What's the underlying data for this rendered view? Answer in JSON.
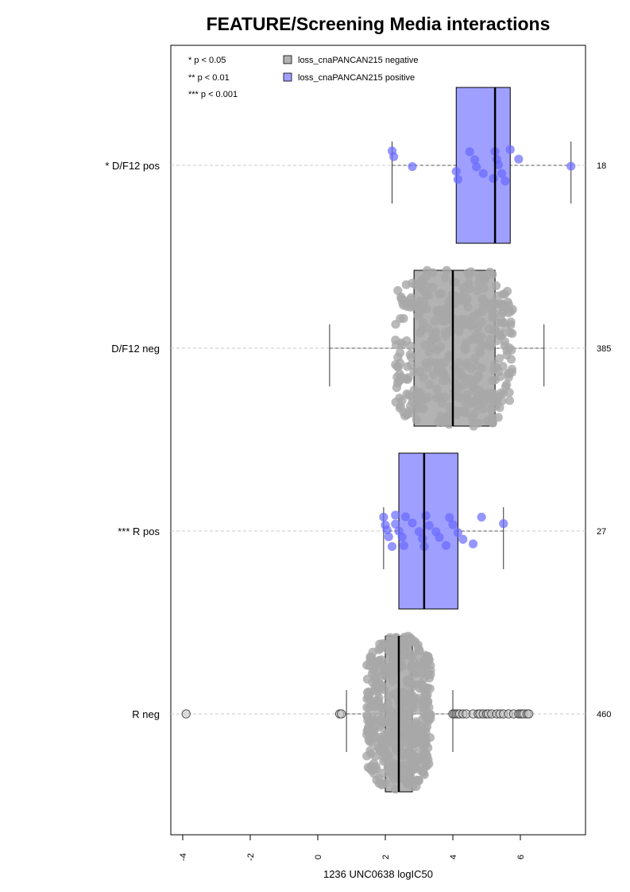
{
  "chart_data": {
    "type": "box",
    "title": "FEATURE/Screening Media interactions",
    "xlabel": "1236 UNC0638 logIC50",
    "xlim": [
      -4.3,
      8.0
    ],
    "xticks": [
      -4,
      -2,
      0,
      2,
      4,
      6
    ],
    "xtick_labels": [
      "-4",
      "-2",
      "0",
      "2",
      "4",
      "6"
    ],
    "grid": "horizontal dashed",
    "pvalue_legend": [
      "* p < 0.05",
      "** p < 0.01",
      "*** p < 0.001"
    ],
    "legend": {
      "placement": "top-left",
      "entries": [
        {
          "label": "loss_cnaPANCAN215 negative",
          "color": "#b3b3b3"
        },
        {
          "label": "loss_cnaPANCAN215 positive",
          "color": "#9f9fff"
        }
      ]
    },
    "categories": [
      "R neg",
      "*** R pos",
      "D/F12 neg",
      "* D/F12 pos"
    ],
    "counts": [
      "460",
      "27",
      "385",
      "18"
    ],
    "groups": [
      {
        "label": "R neg",
        "n": 460,
        "color": "#b3b3b3",
        "point_color": "#a8a8a8",
        "whisker_low": 0.85,
        "q1": 2.0,
        "median": 2.4,
        "q3": 2.8,
        "whisker_high": 4.0,
        "outliers": [
          -3.9,
          0.65,
          0.7,
          4.0,
          4.05,
          4.1,
          4.15,
          4.2,
          4.3,
          4.4,
          4.6,
          4.75,
          4.8,
          4.9,
          5.0,
          5.05,
          5.15,
          5.3,
          5.4,
          5.5,
          5.65,
          5.8,
          5.95,
          6.0,
          6.05,
          6.1,
          6.2,
          6.25
        ]
      },
      {
        "label": "*** R pos",
        "n": 27,
        "color": "#9f9fff",
        "point_color": "#6a6aff",
        "whisker_low": 1.95,
        "q1": 2.4,
        "median": 3.15,
        "q3": 4.15,
        "whisker_high": 5.5,
        "outliers": []
      },
      {
        "label": "D/F12 neg",
        "n": 385,
        "color": "#b3b3b3",
        "point_color": "#a8a8a8",
        "whisker_low": 0.35,
        "q1": 2.85,
        "median": 4.0,
        "q3": 5.25,
        "whisker_high": 6.7,
        "outliers": []
      },
      {
        "label": "* D/F12 pos",
        "n": 18,
        "color": "#9f9fff",
        "point_color": "#6a6aff",
        "whisker_low": 2.2,
        "q1": 4.1,
        "median": 5.25,
        "q3": 5.7,
        "whisker_high": 7.5,
        "outliers": []
      }
    ],
    "pos_points": {
      "*** R pos": [
        1.95,
        2.0,
        2.05,
        2.1,
        2.2,
        2.3,
        2.3,
        2.4,
        2.5,
        2.55,
        2.6,
        2.8,
        3.0,
        3.1,
        3.15,
        3.2,
        3.3,
        3.5,
        3.6,
        3.8,
        3.9,
        4.0,
        4.15,
        4.3,
        4.6,
        4.85,
        5.5
      ],
      "* D/F12 pos": [
        2.2,
        2.25,
        2.8,
        4.1,
        4.15,
        4.5,
        4.65,
        4.7,
        4.9,
        5.2,
        5.25,
        5.3,
        5.35,
        5.45,
        5.55,
        5.7,
        5.95,
        7.5
      ]
    }
  }
}
